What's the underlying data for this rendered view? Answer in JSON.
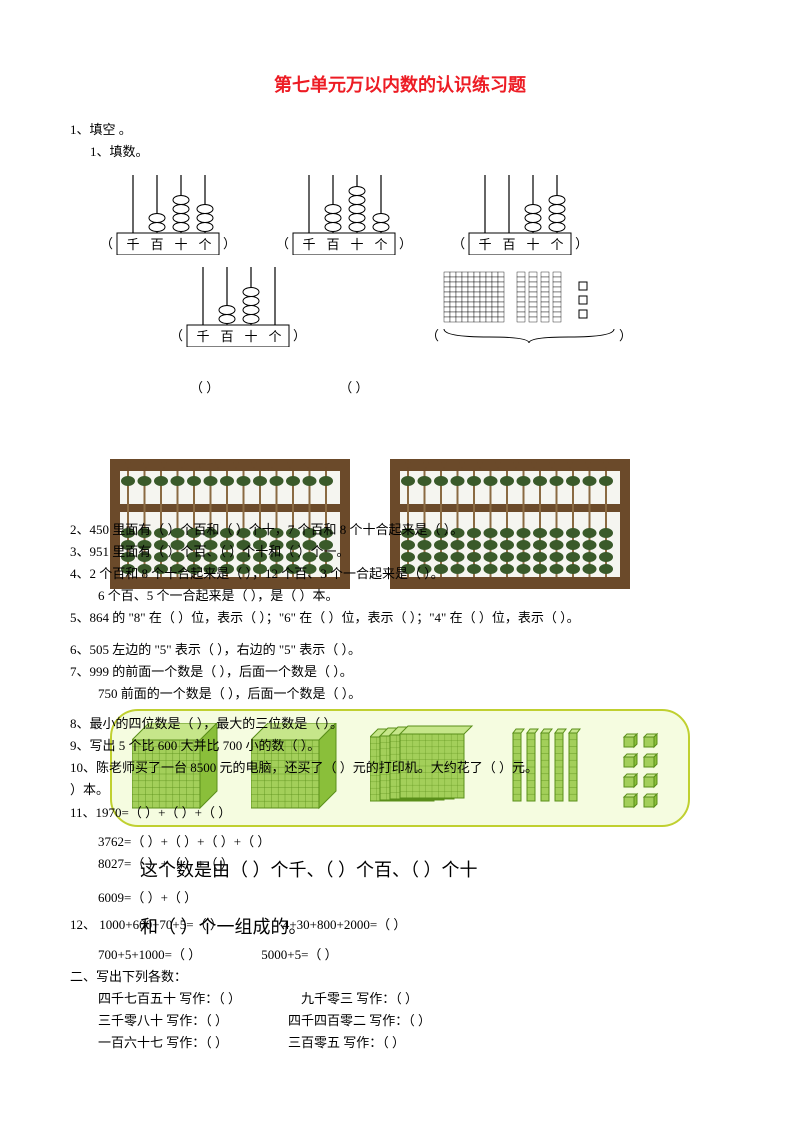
{
  "title": "第七单元万以内数的认识练习题",
  "sec1_header": "1、填空 。",
  "sec1_sub1": "1、填数。",
  "paren_open": "（",
  "paren_close": "）",
  "mini_abacus": {
    "labels": [
      "千",
      "百",
      "十",
      "个"
    ],
    "rod_color": "#000000",
    "box_color": "#ffffff",
    "bead_fill": "#ffffff",
    "bead_stroke": "#000000",
    "items": [
      {
        "beads": [
          0,
          2,
          4,
          3
        ]
      },
      {
        "beads": [
          0,
          3,
          5,
          2
        ]
      },
      {
        "beads": [
          0,
          0,
          3,
          4
        ],
        "labels": [
          "千",
          "百",
          "十",
          "个"
        ]
      },
      {
        "beads": [
          0,
          2,
          4,
          0
        ]
      }
    ]
  },
  "base_blocks_small": {
    "flat_fill": "#ffffff",
    "stroke": "#000000",
    "flat_count": 1,
    "rods": 4,
    "units": 3
  },
  "ans_blank_a": "（           ）",
  "ans_blank_b": "（           ）",
  "abacus_photo": {
    "frame_color": "#6b4a2a",
    "rod_color": "#8a6a42",
    "bead_color": "#3a5a2a",
    "background": "#f5f5f0",
    "rods": 13,
    "beads_upper": 1,
    "beads_lower": 4
  },
  "q2": "2、450 里面有（     ）个百和（     ）个十，7 个百和 8 个十合起来是（     ）。",
  "q3": "3、951 里面有（     ）个百、（     ）个十和（     ）个一。",
  "q4": "4、2 个百和 8 个十合起来是（     ），12 个百、3 个一合起来是（     ）。",
  "q4b": "6 个百、5 个一合起来是（     ），是（     ）本。",
  "q5": "5、864 的 \"8\" 在（     ）位，表示（     ）；\"6\" 在（     ）位，表示（     ）；\"4\" 在（     ）位，表示（     ）。",
  "q6": "6、505 左边的 \"5\" 表示（     ），右边的 \"5\" 表示（     ）。",
  "q7": "7、999 的前面一个数是（     ），后面一个数是（     ）。",
  "q7b": "750 前面的一个数是（     ），后面一个数是（     ）。",
  "q8": "8、最小的四位数是（     ），最大的三位数是（     ）。",
  "q9": "9、写出 5 个比 600 大并比 700 小的数（     ）。",
  "q10": "10、陈老师买了一台 8500 元的电脑，还买了（     ）元的打印机。大约花了（     ）元。",
  "q10b": "）本。",
  "q11": "11、1970=（     ）+（     ）+（     ）",
  "q11b": "3762=（     ）+（     ）+（     ）+（     ）",
  "q11c": "8027=（     ）+（     ）+（     ）",
  "q11d": "6009=（     ）+（     ）",
  "big1": "这个数是由（     ）个千、（     ）个百、（     ）个十",
  "big2": "和（     ）个一组成的。",
  "q12a": "12、 1000+600+70+5=（          ）",
  "q12b": "4+30+800+2000=（          ）",
  "q12c": "700+5+1000=（          ）",
  "q12d": "5000+5=（          ）",
  "sec2_header": "二、写出下列各数：",
  "w": {
    "a1": "四千七百五十  写作：（        ）",
    "a2": "九千零三  写作：（        ）",
    "b1": "三千零八十  写作：（        ）",
    "b2": "四千四百零二  写作：（        ）",
    "c1": "一百六十七  写作：（      ）",
    "c2": "三百零五  写作：（      ）"
  },
  "base10_card": {
    "cube_fill": "#a3cf5a",
    "cube_stroke": "#5a8f1a",
    "cube_top": "#c6e68a",
    "cube_side": "#8abf3a",
    "bg": "#f5fce0",
    "border": "#c0d030"
  }
}
